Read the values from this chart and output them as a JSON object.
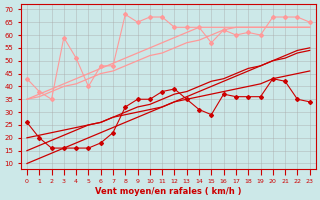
{
  "x": [
    0,
    1,
    2,
    3,
    4,
    5,
    6,
    7,
    8,
    9,
    10,
    11,
    12,
    13,
    14,
    15,
    16,
    17,
    18,
    19,
    20,
    21,
    22,
    23
  ],
  "pink_jagged": [
    43,
    38,
    35,
    59,
    51,
    40,
    48,
    48,
    68,
    65,
    67,
    67,
    63,
    63,
    63,
    57,
    62,
    60,
    61,
    60,
    67,
    67,
    67,
    65
  ],
  "pink_reg1": [
    35,
    37,
    39,
    41,
    43,
    45,
    47,
    49,
    51,
    53,
    55,
    57,
    59,
    61,
    63,
    63,
    63,
    63,
    63,
    63,
    63,
    63,
    63,
    63
  ],
  "pink_reg2": [
    35,
    36,
    38,
    40,
    41,
    43,
    45,
    46,
    48,
    50,
    52,
    53,
    55,
    57,
    58,
    60,
    62,
    63,
    63,
    63,
    63,
    63,
    63,
    63
  ],
  "red_jagged": [
    26,
    20,
    16,
    16,
    16,
    16,
    18,
    22,
    32,
    35,
    35,
    38,
    39,
    35,
    31,
    29,
    37,
    36,
    36,
    36,
    43,
    42,
    35,
    34
  ],
  "red_reg1": [
    10,
    12,
    14,
    16,
    18,
    20,
    22,
    24,
    26,
    28,
    30,
    32,
    34,
    36,
    38,
    40,
    42,
    44,
    46,
    48,
    50,
    52,
    54,
    55
  ],
  "red_reg2": [
    15,
    17,
    19,
    21,
    23,
    25,
    26,
    28,
    30,
    32,
    33,
    35,
    37,
    38,
    40,
    42,
    43,
    45,
    47,
    48,
    50,
    51,
    53,
    54
  ],
  "red_reg3": [
    20,
    21,
    22,
    23,
    24,
    25,
    26,
    28,
    29,
    30,
    31,
    32,
    34,
    35,
    36,
    37,
    38,
    39,
    40,
    41,
    43,
    44,
    45,
    46
  ],
  "ylim": [
    8,
    72
  ],
  "yticks": [
    10,
    15,
    20,
    25,
    30,
    35,
    40,
    45,
    50,
    55,
    60,
    65,
    70
  ],
  "xlabel": "Vent moyen/en rafales ( km/h )",
  "bg_color": "#cce8e8",
  "grid_color": "#aaaaaa",
  "pink_color": "#ff9999",
  "red_color": "#cc0000"
}
